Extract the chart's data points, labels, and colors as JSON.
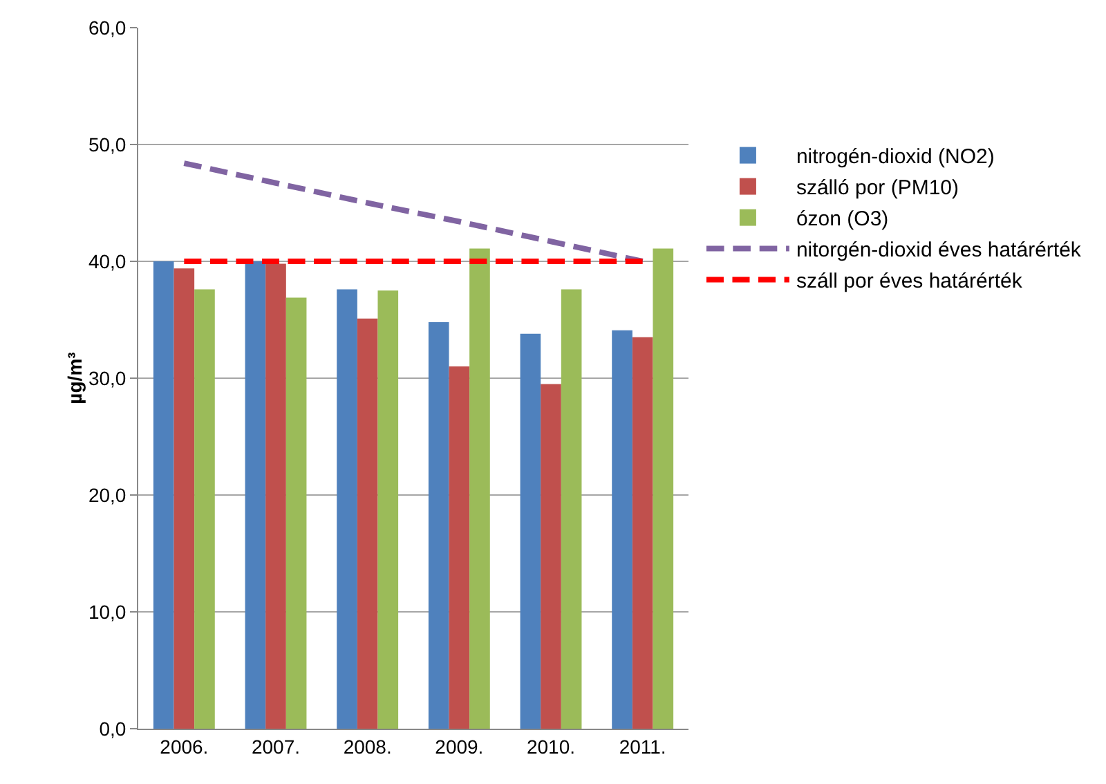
{
  "chart_data": {
    "type": "bar",
    "ylabel": "µg/m³",
    "categories": [
      "2006.",
      "2007.",
      "2008.",
      "2009.",
      "2010.",
      "2011."
    ],
    "series": [
      {
        "name": "nitrogén-dioxid (NO2)",
        "color": "#4f81bd",
        "values": [
          40.0,
          40.0,
          37.6,
          34.8,
          33.8,
          34.1
        ]
      },
      {
        "name": "szálló por (PM10)",
        "color": "#c0504d",
        "values": [
          39.4,
          39.8,
          35.1,
          31.0,
          29.5,
          33.5
        ]
      },
      {
        "name": "ózon (O3)",
        "color": "#9bbb59",
        "values": [
          37.6,
          36.9,
          37.5,
          41.1,
          37.6,
          41.1
        ]
      },
      {
        "name": "nitorgén-dioxid éves határérték",
        "type": "line",
        "line_style": "dashed",
        "color": "#8064a2",
        "values": [
          48.4,
          46.7,
          45.0,
          43.4,
          41.7,
          40.0
        ]
      },
      {
        "name": "száll por éves határérték",
        "type": "line",
        "line_style": "dashed",
        "color": "#ff0000",
        "values": [
          40.0,
          40.0,
          40.0,
          40.0,
          40.0,
          40.0
        ]
      }
    ],
    "ylim": [
      0,
      60
    ],
    "yticks": [
      {
        "value": 0,
        "label": "0,0"
      },
      {
        "value": 10,
        "label": "10,0"
      },
      {
        "value": 20,
        "label": "20,0"
      },
      {
        "value": 30,
        "label": "30,0"
      },
      {
        "value": 40,
        "label": "40,0"
      },
      {
        "value": 50,
        "label": "50,0"
      },
      {
        "value": 60,
        "label": "60,0"
      }
    ],
    "grid": "y",
    "legend": "right"
  }
}
